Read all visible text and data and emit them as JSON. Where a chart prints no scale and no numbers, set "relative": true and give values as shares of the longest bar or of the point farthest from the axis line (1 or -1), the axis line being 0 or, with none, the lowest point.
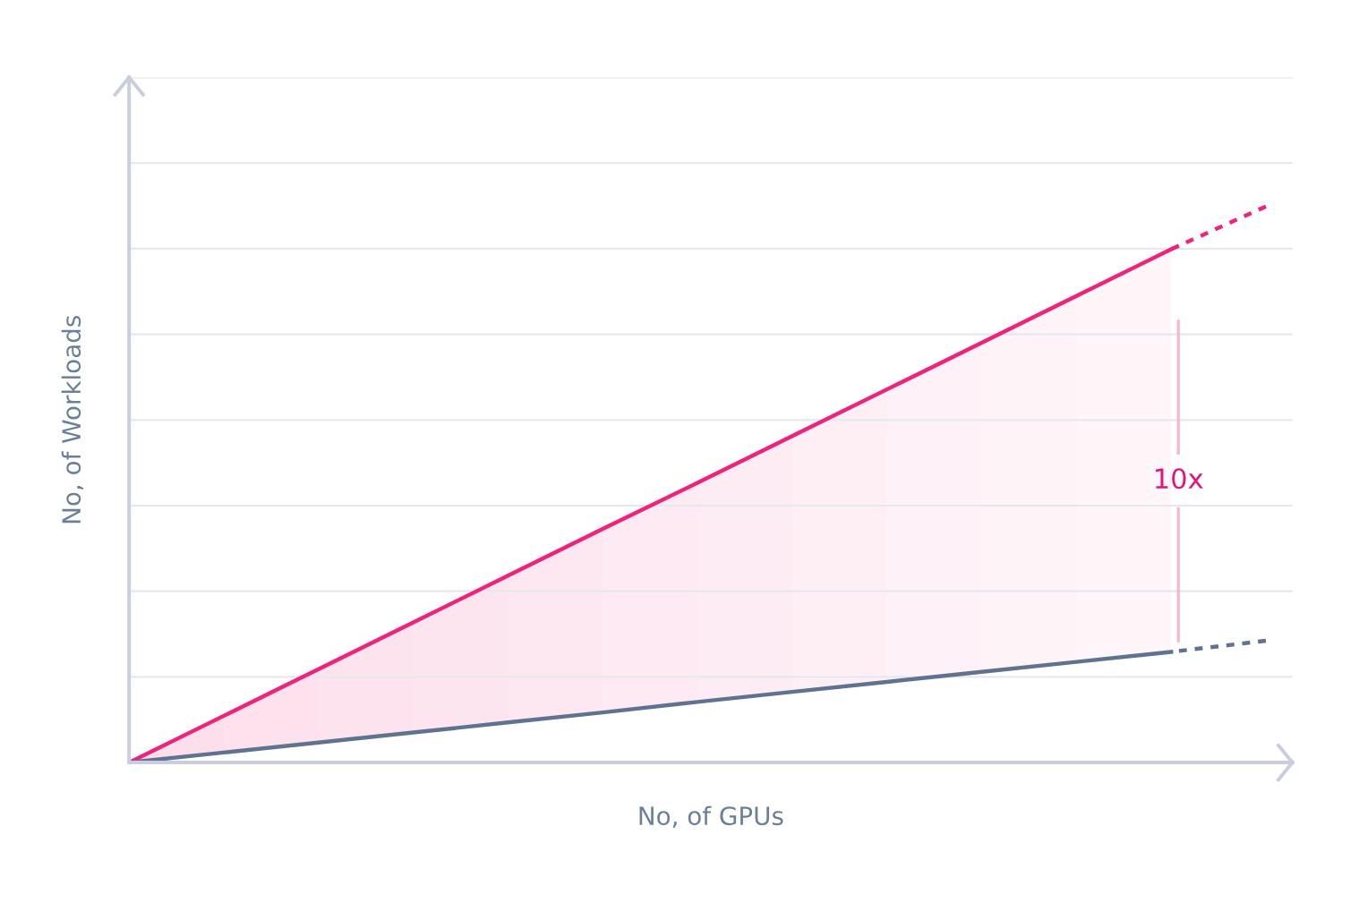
{
  "chart_data": {
    "type": "line",
    "relative": true,
    "xlabel": "No, of GPUs",
    "ylabel": "No, of Workloads",
    "categories": [
      null,
      null,
      null,
      null,
      null,
      null,
      null,
      null,
      null,
      null,
      null,
      null,
      null
    ],
    "series": [
      {
        "color": "#f0237a",
        "line_style": "solid",
        "values": [
          0,
          0.084,
          0.168,
          0.252,
          0.336,
          0.42,
          0.503,
          0.587,
          0.671,
          0.755,
          0.839,
          0.923,
          null
        ]
      },
      {
        "color": "#f0237a",
        "line_style": "dotted",
        "values": [
          null,
          null,
          null,
          null,
          null,
          null,
          null,
          null,
          null,
          null,
          null,
          0.923,
          1
        ]
      },
      {
        "color": "#5f7390",
        "line_style": "solid",
        "values": [
          0,
          0.018,
          0.036,
          0.054,
          0.072,
          0.09,
          0.109,
          0.127,
          0.145,
          0.163,
          0.181,
          0.199,
          null
        ]
      },
      {
        "color": "#5f7390",
        "line_style": "dotted",
        "values": [
          null,
          null,
          null,
          null,
          null,
          null,
          null,
          null,
          null,
          null,
          null,
          0.199,
          0.219
        ]
      }
    ],
    "annotations": [
      "10x"
    ],
    "grid": "y",
    "legend": false,
    "marker": "none"
  }
}
